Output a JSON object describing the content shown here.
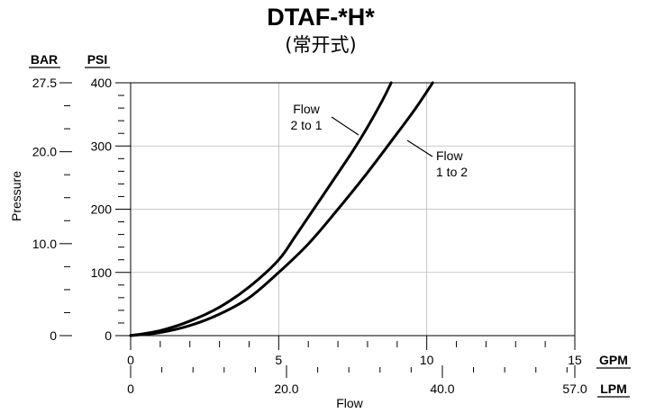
{
  "chart_data": {
    "type": "line",
    "title": "DTAF-*H*",
    "subtitle": "(常开式)",
    "xlabel": "Flow",
    "ylabel": "Pressure",
    "x_primary_unit": "GPM",
    "x_secondary_unit": "LPM",
    "y_primary_unit": "PSI",
    "y_secondary_unit": "BAR",
    "xlim": [
      0,
      15
    ],
    "ylim": [
      0,
      400
    ],
    "x_secondary_lim": [
      0,
      57.0
    ],
    "y_secondary_lim": [
      0,
      27.5
    ],
    "x_ticks": [
      "0",
      "5",
      "10",
      "15"
    ],
    "x_secondary_ticks": [
      "0",
      "20.0",
      "40.0",
      "57.0"
    ],
    "y_ticks": [
      "0",
      "100",
      "200",
      "300",
      "400"
    ],
    "y_secondary_ticks": [
      "0",
      "10.0",
      "20.0",
      "27.5"
    ],
    "grid": true,
    "series": [
      {
        "name": "Flow\n2 to 1",
        "x": [
          0,
          1,
          2,
          3,
          4,
          5,
          5.6,
          6.5,
          7.5,
          8.0,
          8.5,
          8.8
        ],
        "y": [
          0,
          8,
          23,
          45,
          77,
          120,
          160,
          222,
          292,
          330,
          372,
          400
        ]
      },
      {
        "name": "Flow\n1 to 2",
        "x": [
          0,
          1,
          2,
          3,
          4,
          5,
          6,
          7,
          8,
          9,
          9.6,
          10.2
        ],
        "y": [
          0,
          5,
          16,
          34,
          60,
          100,
          145,
          200,
          258,
          320,
          358,
          400
        ]
      }
    ],
    "annotations": [
      {
        "text_lines": [
          "Flow",
          "2 to 1"
        ],
        "series": 0
      },
      {
        "text_lines": [
          "Flow",
          "1 to 2"
        ],
        "series": 1
      }
    ]
  }
}
